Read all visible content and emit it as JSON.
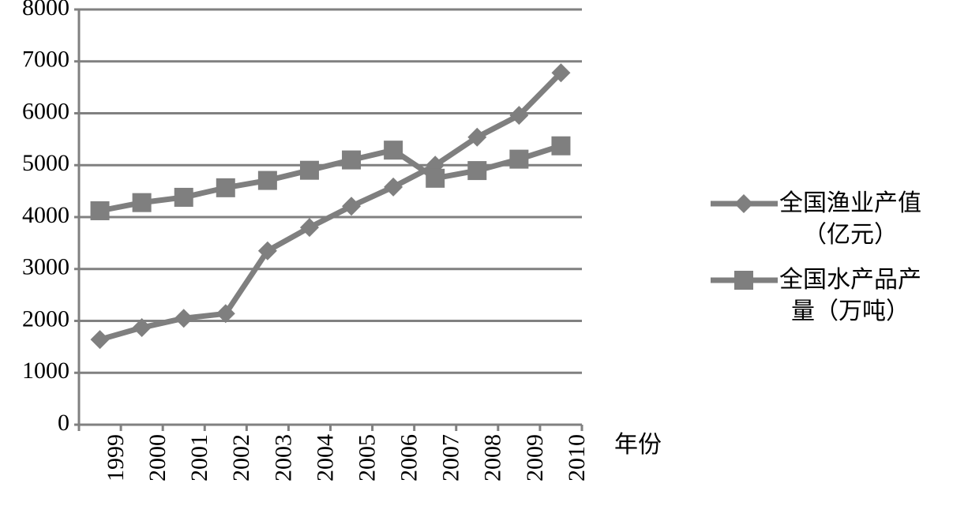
{
  "chart_data": {
    "type": "line",
    "categories": [
      "1999",
      "2000",
      "2001",
      "2002",
      "2003",
      "2004",
      "2005",
      "2006",
      "2007",
      "2008",
      "2009",
      "2010"
    ],
    "series": [
      {
        "name": "全国渔业产值（亿元）",
        "color": "#7f7f7f",
        "marker": "diamond",
        "values": [
          1640,
          1870,
          2050,
          2140,
          3350,
          3800,
          4210,
          4580,
          5000,
          5540,
          5960,
          6780
        ]
      },
      {
        "name": "全国水产品产量（万吨）",
        "color": "#7f7f7f",
        "marker": "square",
        "values": [
          4122,
          4279,
          4381,
          4565,
          4706,
          4902,
          5101,
          5290,
          4748,
          4896,
          5116,
          5373
        ]
      }
    ],
    "x_label": "年份",
    "ylim": [
      0,
      8000
    ],
    "yticks": [
      0,
      1000,
      2000,
      3000,
      4000,
      5000,
      6000,
      7000,
      8000
    ],
    "grid": true,
    "legend": "right"
  }
}
